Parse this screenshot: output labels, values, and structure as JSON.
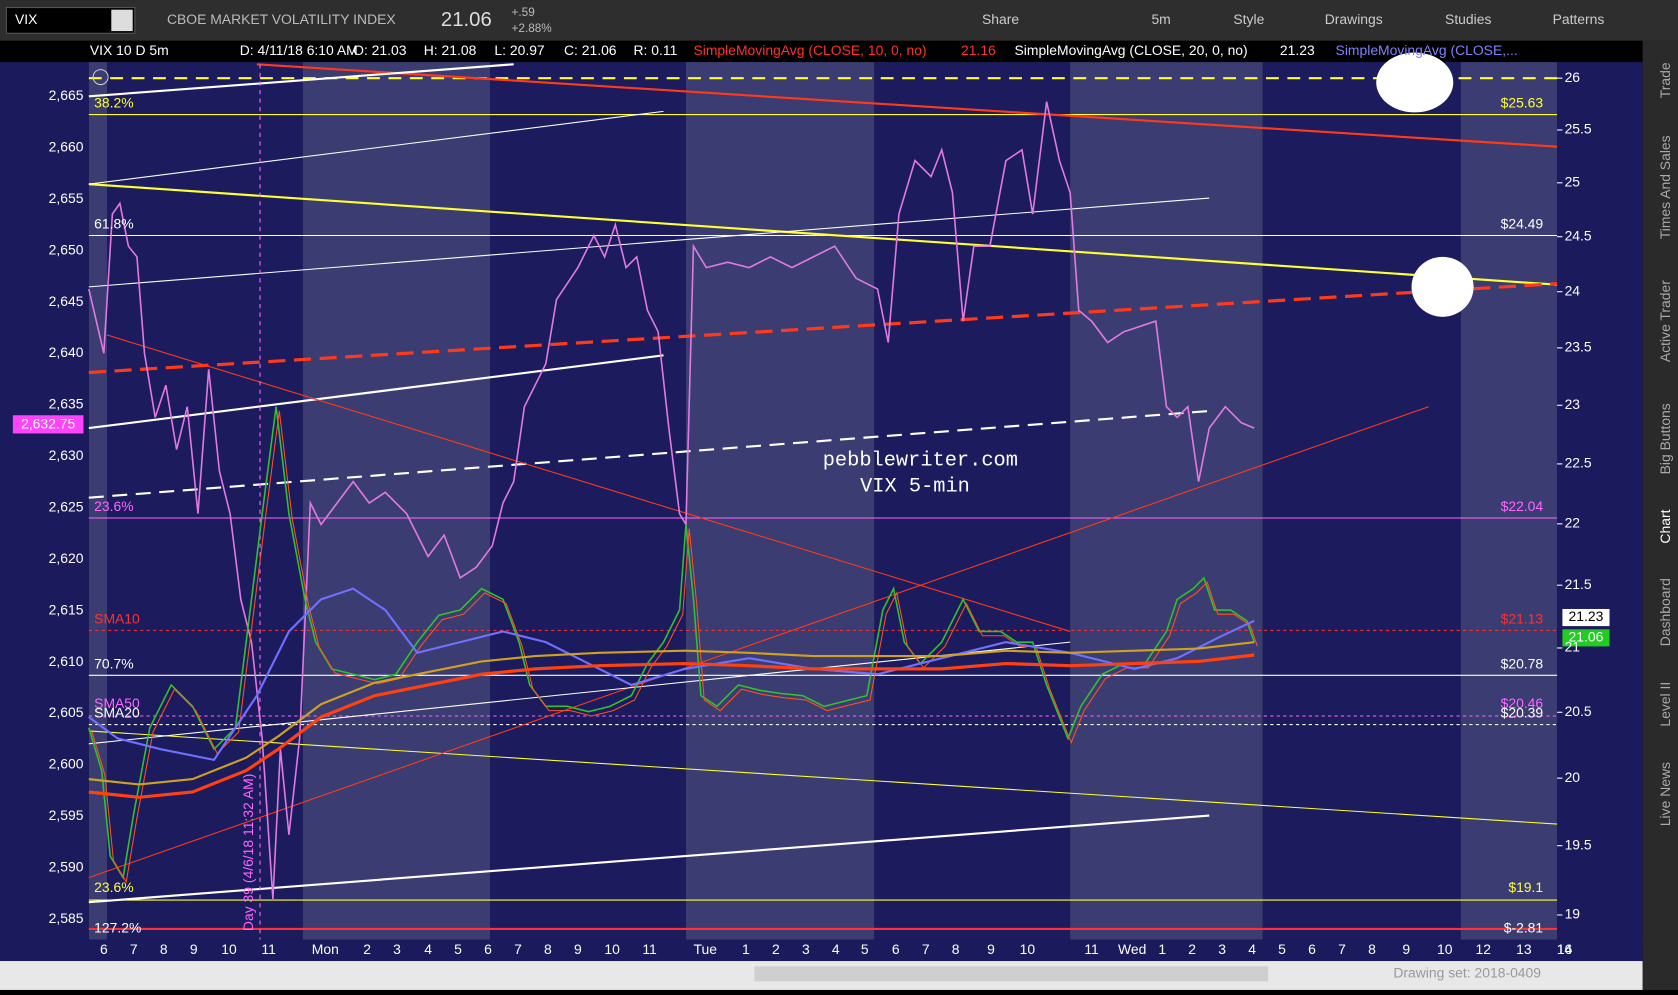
{
  "toolbar": {
    "symbol": "VIX",
    "name": "CBOE MARKET VOLATILITY INDEX",
    "last": "21.06",
    "change": "+.59",
    "change_pct": "+2.88%",
    "buttons": [
      "Share",
      "5m",
      "Style",
      "Drawings",
      "Studies",
      "Patterns"
    ]
  },
  "chart_header": {
    "items": [
      "VIX 10 D 5m",
      "D: 4/11/18 6:10 AM",
      "O: 21.03",
      "H: 21.08",
      "L: 20.97",
      "C: 21.06",
      "R: 0.11"
    ],
    "studies": [
      {
        "text": "SimpleMovingAvg (CLOSE, 10, 0, no)",
        "value": "21.16",
        "color": "#ff3030"
      },
      {
        "text": "SimpleMovingAvg (CLOSE, 20, 0, no)",
        "value": "21.23",
        "color": "#ffffff"
      },
      {
        "text": "SimpleMovingAvg (CLOSE,...",
        "value": "",
        "color": "#8080ff"
      }
    ]
  },
  "left_axis": [
    "2,665",
    "2,660",
    "2,655",
    "2,650",
    "2,645",
    "2,640",
    "2,635",
    "2,630",
    "2,625",
    "2,620",
    "2,615",
    "2,610",
    "2,605",
    "2,600",
    "2,595",
    "2,590",
    "2,585"
  ],
  "right_axis": [
    26,
    25.5,
    25,
    24.5,
    24,
    23.5,
    23,
    22.5,
    22,
    21.5,
    21,
    20.5,
    20,
    19.5,
    19
  ],
  "x_axis": [
    "6",
    "7",
    "8",
    "9",
    "10",
    "11",
    "Mon",
    "2",
    "3",
    "4",
    "5",
    "6",
    "7",
    "8",
    "9",
    "10",
    "11",
    "Tue",
    "1",
    "2",
    "3",
    "4",
    "5",
    "6",
    "7",
    "8",
    "9",
    "10",
    "11",
    "Wed",
    "1",
    "2",
    "3",
    "4",
    "5",
    "6",
    "7",
    "8",
    "9",
    "10",
    "12",
    "13",
    "14",
    "16"
  ],
  "levels_left": [
    "38.2%",
    "61.8%",
    "23.6%",
    "SMA10",
    "70.7%",
    "SMA50",
    "SMA20",
    "23.6%",
    "127.2%"
  ],
  "levels_right": [
    "$25.63",
    "$24.49",
    "$22.04",
    "$21.13",
    "$20.78",
    "$20.46",
    "$20.39",
    "$19.1",
    "$-2.81"
  ],
  "price_tags": {
    "left": "2,632.75",
    "sma20": "21.23",
    "last": "21.06"
  },
  "day_note": "Day 39 (4/6/18 11:32 AM)",
  "watermark": [
    "pebblewriter.com",
    "VIX 5-min"
  ],
  "side_tabs": [
    "Trade",
    "Times And Sales",
    "Active Trader",
    "Big Buttons",
    "Chart",
    "Dashboard",
    "Level II",
    "Live News"
  ],
  "status": "Drawing set: 2018-0409"
}
